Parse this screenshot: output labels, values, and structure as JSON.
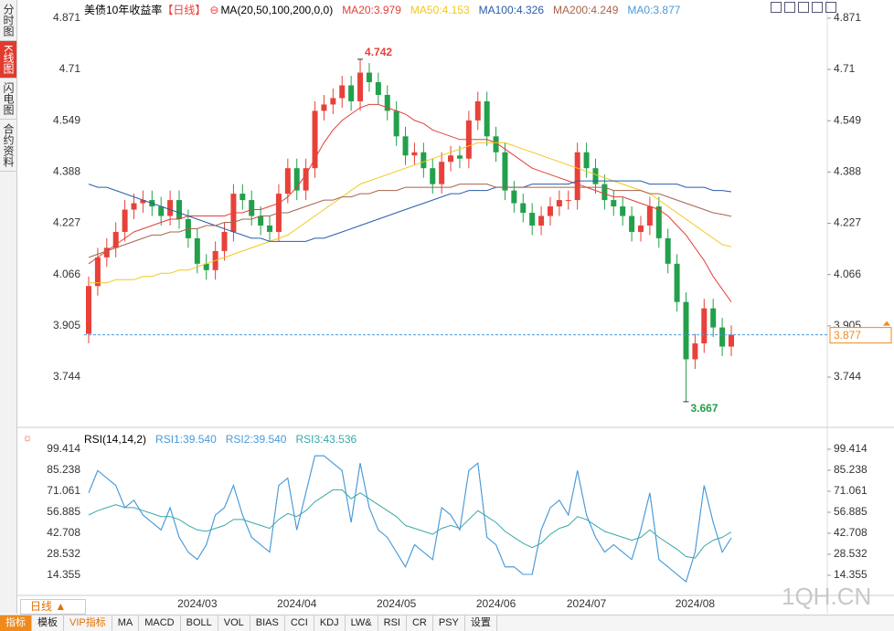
{
  "sidebar": [
    "分时图",
    "K线图",
    "闪电图",
    "合约资料"
  ],
  "toolbar": [
    "指标",
    "模板",
    "VIP指标",
    "MA",
    "MACD",
    "BOLL",
    "VOL",
    "BIAS",
    "CCI",
    "KDJ",
    "LW&",
    "RSI",
    "CR",
    "PSY",
    "设置"
  ],
  "period_button": "日线",
  "watermark": "1QH.CN",
  "chart_data": [
    {
      "type": "candlestick",
      "title": "美债10年收益率",
      "period": "【日线】",
      "indicator": "MA(20,50,100,200,0,0)",
      "categories": [
        null,
        null,
        null,
        null,
        null,
        null,
        null,
        null,
        null,
        null,
        null,
        null,
        "2024/03",
        null,
        null,
        null,
        null,
        null,
        null,
        null,
        null,
        null,
        null,
        "2024/04",
        null,
        null,
        null,
        null,
        null,
        null,
        null,
        null,
        null,
        null,
        "2024/05",
        null,
        null,
        null,
        null,
        null,
        null,
        null,
        null,
        null,
        null,
        "2024/06",
        null,
        null,
        null,
        null,
        null,
        null,
        null,
        null,
        null,
        "2024/07",
        null,
        null,
        null,
        null,
        null,
        null,
        null,
        null,
        null,
        null,
        null,
        "2024/08",
        null,
        null,
        null,
        null
      ],
      "open": [
        3.88,
        4.03,
        4.12,
        4.15,
        4.2,
        4.27,
        4.29,
        4.3,
        4.28,
        4.25,
        4.3,
        4.24,
        4.18,
        4.1,
        4.08,
        4.14,
        4.2,
        4.32,
        4.3,
        4.25,
        4.22,
        4.2,
        4.32,
        4.4,
        4.33,
        4.4,
        4.58,
        4.6,
        4.62,
        4.66,
        4.61,
        4.7,
        4.67,
        4.63,
        4.58,
        4.5,
        4.44,
        4.45,
        4.4,
        4.35,
        4.42,
        4.44,
        4.43,
        4.55,
        4.61,
        4.5,
        4.45,
        4.33,
        4.29,
        4.26,
        4.22,
        4.25,
        4.28,
        4.3,
        4.3,
        4.45,
        4.4,
        4.35,
        4.3,
        4.28,
        4.25,
        4.2,
        4.22,
        4.28,
        4.18,
        4.1,
        3.98,
        3.8,
        3.85,
        3.96,
        3.9,
        3.84
      ],
      "high": [
        4.06,
        4.15,
        4.18,
        4.23,
        4.3,
        4.32,
        4.33,
        4.33,
        4.31,
        4.33,
        4.33,
        4.27,
        4.21,
        4.13,
        4.17,
        4.23,
        4.35,
        4.35,
        4.33,
        4.28,
        4.25,
        4.35,
        4.43,
        4.43,
        4.43,
        4.61,
        4.63,
        4.65,
        4.69,
        4.69,
        4.742,
        4.73,
        4.7,
        4.66,
        4.61,
        4.53,
        4.48,
        4.48,
        4.43,
        4.45,
        4.47,
        4.47,
        4.58,
        4.64,
        4.64,
        4.53,
        4.48,
        4.36,
        4.32,
        4.29,
        4.28,
        4.31,
        4.33,
        4.33,
        4.48,
        4.48,
        4.43,
        4.38,
        4.33,
        4.31,
        4.28,
        4.25,
        4.31,
        4.31,
        4.21,
        4.13,
        4.01,
        3.88,
        3.99,
        3.99,
        3.93,
        3.907
      ],
      "low": [
        3.85,
        4.0,
        4.09,
        4.12,
        4.17,
        4.24,
        4.26,
        4.25,
        4.22,
        4.22,
        4.21,
        4.15,
        4.07,
        4.05,
        4.05,
        4.11,
        4.17,
        4.27,
        4.22,
        4.19,
        4.17,
        4.17,
        4.29,
        4.3,
        4.3,
        4.37,
        4.55,
        4.57,
        4.59,
        4.58,
        4.58,
        4.64,
        4.6,
        4.55,
        4.47,
        4.41,
        4.41,
        4.37,
        4.32,
        4.32,
        4.39,
        4.4,
        4.4,
        4.52,
        4.47,
        4.42,
        4.3,
        4.26,
        4.23,
        4.19,
        4.19,
        4.22,
        4.25,
        4.27,
        4.27,
        4.37,
        4.32,
        4.27,
        4.25,
        4.22,
        4.17,
        4.17,
        4.19,
        4.15,
        4.07,
        3.95,
        3.667,
        3.77,
        3.82,
        3.87,
        3.81,
        3.81
      ],
      "close": [
        4.03,
        4.12,
        4.15,
        4.2,
        4.27,
        4.29,
        4.3,
        4.28,
        4.25,
        4.3,
        4.24,
        4.18,
        4.1,
        4.08,
        4.14,
        4.2,
        4.32,
        4.3,
        4.25,
        4.22,
        4.2,
        4.32,
        4.4,
        4.33,
        4.4,
        4.58,
        4.6,
        4.62,
        4.66,
        4.61,
        4.7,
        4.67,
        4.63,
        4.58,
        4.5,
        4.44,
        4.45,
        4.4,
        4.35,
        4.42,
        4.44,
        4.43,
        4.55,
        4.61,
        4.5,
        4.45,
        4.33,
        4.29,
        4.26,
        4.22,
        4.25,
        4.28,
        4.3,
        4.3,
        4.45,
        4.4,
        4.35,
        4.3,
        4.28,
        4.25,
        4.2,
        4.22,
        4.28,
        4.18,
        4.1,
        3.98,
        3.8,
        3.85,
        3.96,
        3.9,
        3.84,
        3.877
      ],
      "up_color": "#e8413a",
      "down_color": "#22a04b",
      "series": [
        {
          "name": "MA20:3.979",
          "color": "#e2403a",
          "values": [
            4.1,
            4.12,
            4.14,
            4.16,
            4.18,
            4.2,
            4.21,
            4.22,
            4.23,
            4.24,
            4.24,
            4.25,
            4.25,
            4.25,
            4.25,
            4.25,
            4.26,
            4.26,
            4.27,
            4.27,
            4.28,
            4.29,
            4.31,
            4.34,
            4.38,
            4.43,
            4.48,
            4.52,
            4.55,
            4.57,
            4.59,
            4.6,
            4.6,
            4.59,
            4.58,
            4.57,
            4.55,
            4.54,
            4.52,
            4.51,
            4.5,
            4.49,
            4.49,
            4.49,
            4.49,
            4.48,
            4.46,
            4.44,
            4.42,
            4.4,
            4.39,
            4.38,
            4.37,
            4.36,
            4.35,
            4.34,
            4.33,
            4.32,
            4.31,
            4.31,
            4.3,
            4.29,
            4.28,
            4.27,
            4.25,
            4.22,
            4.19,
            4.15,
            4.11,
            4.06,
            4.02,
            3.98
          ]
        },
        {
          "name": "MA50:4.153",
          "color": "#f2c81c",
          "values": [
            4.04,
            4.04,
            4.04,
            4.05,
            4.05,
            4.05,
            4.06,
            4.06,
            4.07,
            4.07,
            4.08,
            4.08,
            4.09,
            4.1,
            4.11,
            4.12,
            4.13,
            4.14,
            4.15,
            4.16,
            4.17,
            4.18,
            4.19,
            4.21,
            4.23,
            4.25,
            4.27,
            4.29,
            4.31,
            4.33,
            4.35,
            4.36,
            4.37,
            4.38,
            4.39,
            4.4,
            4.41,
            4.42,
            4.43,
            4.44,
            4.45,
            4.46,
            4.47,
            4.48,
            4.48,
            4.48,
            4.48,
            4.47,
            4.46,
            4.45,
            4.44,
            4.43,
            4.42,
            4.41,
            4.4,
            4.39,
            4.38,
            4.37,
            4.36,
            4.35,
            4.34,
            4.33,
            4.32,
            4.3,
            4.28,
            4.26,
            4.24,
            4.22,
            4.2,
            4.18,
            4.16,
            4.153
          ]
        },
        {
          "name": "MA100:4.326",
          "color": "#2a5caa",
          "values": [
            4.35,
            4.34,
            4.34,
            4.33,
            4.32,
            4.31,
            4.3,
            4.29,
            4.28,
            4.27,
            4.26,
            4.25,
            4.24,
            4.23,
            4.22,
            4.21,
            4.2,
            4.19,
            4.18,
            4.18,
            4.17,
            4.17,
            4.17,
            4.17,
            4.17,
            4.18,
            4.18,
            4.19,
            4.2,
            4.21,
            4.22,
            4.23,
            4.24,
            4.25,
            4.26,
            4.27,
            4.28,
            4.29,
            4.3,
            4.31,
            4.32,
            4.32,
            4.33,
            4.33,
            4.33,
            4.34,
            4.34,
            4.34,
            4.34,
            4.35,
            4.35,
            4.35,
            4.35,
            4.35,
            4.36,
            4.36,
            4.36,
            4.36,
            4.36,
            4.36,
            4.36,
            4.36,
            4.35,
            4.35,
            4.35,
            4.35,
            4.34,
            4.34,
            4.34,
            4.33,
            4.33,
            4.326
          ]
        },
        {
          "name": "MA200:4.249",
          "color": "#a8644a",
          "values": [
            4.12,
            4.13,
            4.14,
            4.15,
            4.16,
            4.17,
            4.18,
            4.19,
            4.19,
            4.2,
            4.2,
            4.21,
            4.21,
            4.22,
            4.22,
            4.23,
            4.23,
            4.24,
            4.24,
            4.25,
            4.25,
            4.26,
            4.26,
            4.27,
            4.28,
            4.29,
            4.3,
            4.3,
            4.31,
            4.31,
            4.32,
            4.32,
            4.33,
            4.33,
            4.33,
            4.34,
            4.34,
            4.34,
            4.34,
            4.34,
            4.34,
            4.35,
            4.35,
            4.35,
            4.35,
            4.34,
            4.34,
            4.34,
            4.34,
            4.34,
            4.34,
            4.34,
            4.34,
            4.34,
            4.34,
            4.34,
            4.34,
            4.34,
            4.33,
            4.33,
            4.33,
            4.33,
            4.32,
            4.32,
            4.31,
            4.3,
            4.29,
            4.28,
            4.27,
            4.26,
            4.255,
            4.249
          ]
        }
      ],
      "last_label": "MA0:3.877",
      "last_color": "#4a9ad9",
      "last_price": 3.877,
      "last_box_color": "#f08a1c",
      "max_label": 4.742,
      "min_label": 3.667,
      "ylim": [
        3.595,
        4.928
      ],
      "yticks": [
        4.871,
        4.71,
        4.549,
        4.388,
        4.227,
        4.066,
        3.905,
        3.744
      ]
    },
    {
      "type": "line",
      "title": "RSI(14,14,2)",
      "series": [
        {
          "name": "RSI1:39.540",
          "color": "#4a9ad9",
          "values": [
            70,
            85,
            80,
            75,
            60,
            65,
            55,
            50,
            45,
            60,
            40,
            30,
            25,
            35,
            55,
            60,
            75,
            55,
            40,
            35,
            30,
            75,
            80,
            45,
            70,
            95,
            95,
            90,
            85,
            50,
            90,
            60,
            45,
            40,
            30,
            20,
            35,
            30,
            25,
            60,
            55,
            45,
            85,
            90,
            40,
            35,
            20,
            20,
            15,
            15,
            45,
            60,
            65,
            55,
            85,
            55,
            40,
            30,
            35,
            30,
            25,
            45,
            70,
            25,
            20,
            15,
            10,
            30,
            75,
            50,
            30,
            39.54
          ]
        },
        {
          "name": "RSI2:39.540",
          "color": "#4a9ad9",
          "values": [
            70,
            85,
            80,
            75,
            60,
            65,
            55,
            50,
            45,
            60,
            40,
            30,
            25,
            35,
            55,
            60,
            75,
            55,
            40,
            35,
            30,
            75,
            80,
            45,
            70,
            95,
            95,
            90,
            85,
            50,
            90,
            60,
            45,
            40,
            30,
            20,
            35,
            30,
            25,
            60,
            55,
            45,
            85,
            90,
            40,
            35,
            20,
            20,
            15,
            15,
            45,
            60,
            65,
            55,
            85,
            55,
            40,
            30,
            35,
            30,
            25,
            45,
            70,
            25,
            20,
            15,
            10,
            30,
            75,
            50,
            30,
            39.54
          ]
        },
        {
          "name": "RSI3:43.536",
          "color": "#3aa9a8",
          "values": [
            55,
            58,
            60,
            62,
            60,
            60,
            58,
            56,
            54,
            54,
            52,
            48,
            45,
            44,
            46,
            48,
            52,
            52,
            50,
            48,
            46,
            52,
            56,
            54,
            58,
            64,
            68,
            72,
            72,
            66,
            70,
            66,
            62,
            58,
            54,
            48,
            46,
            44,
            42,
            46,
            48,
            46,
            52,
            58,
            54,
            50,
            44,
            40,
            36,
            33,
            36,
            42,
            46,
            48,
            54,
            52,
            48,
            44,
            42,
            40,
            38,
            40,
            45,
            40,
            36,
            32,
            27,
            26,
            34,
            38,
            40,
            43.536
          ]
        }
      ],
      "ylim": [
        0.8,
        111.7
      ],
      "yticks": [
        99.414,
        85.238,
        71.061,
        56.885,
        42.708,
        28.532,
        14.355
      ]
    }
  ]
}
